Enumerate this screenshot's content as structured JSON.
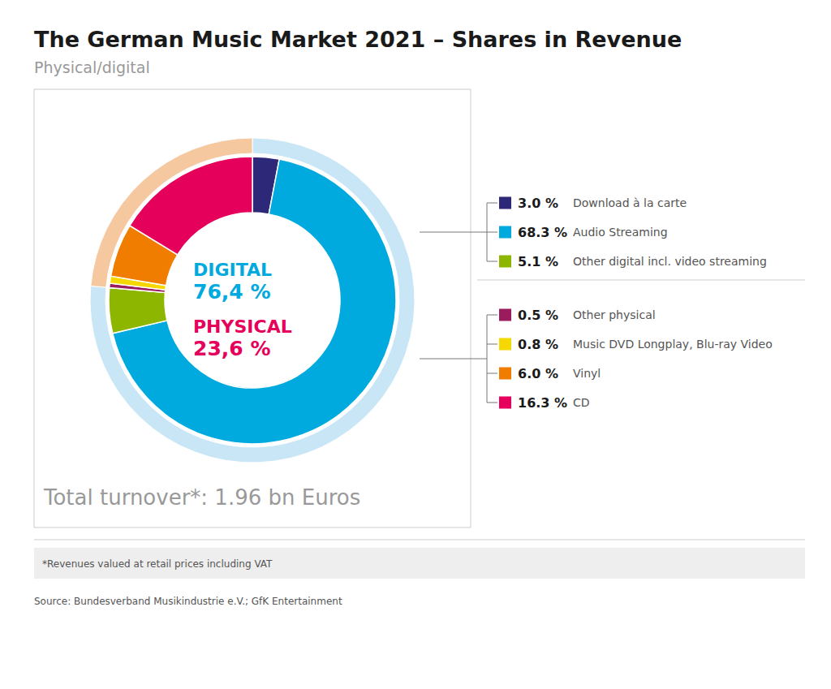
{
  "chart_data": {
    "type": "pie",
    "title": "The German Music Market 2021 – Shares in Revenue",
    "subtitle": "Physical/digital",
    "groups": [
      {
        "name": "DIGITAL",
        "value": 76.4,
        "value_label": "76,4 %",
        "color": "#c8e6f5",
        "label_color": "#00aade",
        "categories": [
          "Download à la carte",
          "Audio Streaming",
          "Other digital incl. video streaming"
        ],
        "values": [
          3.0,
          68.3,
          5.1
        ],
        "value_labels": [
          "3.0 %",
          "68.3 %",
          "5.1 %"
        ],
        "colors": [
          "#2e2878",
          "#00aade",
          "#8db600"
        ]
      },
      {
        "name": "PHYSICAL",
        "value": 23.6,
        "value_label": "23,6 %",
        "color": "#f5c8a0",
        "label_color": "#e5005b",
        "categories": [
          "Other physical",
          "Music DVD Longplay, Blu-ray Video",
          "Vinyl",
          "CD"
        ],
        "values": [
          0.5,
          0.8,
          6.0,
          16.3
        ],
        "value_labels": [
          "0.5 %",
          "0.8 %",
          "6.0 %",
          "16.3 %"
        ],
        "colors": [
          "#9b1c5e",
          "#f5d800",
          "#f07c00",
          "#e5005b"
        ]
      }
    ],
    "data_labels": true,
    "annotations": [
      "Total turnover*: 1.96 bn Euros"
    ],
    "footnote": "*Revenues valued at retail prices including VAT",
    "source": "Source: Bundesverband Musikindustrie e.V.; GfK Entertainment"
  }
}
